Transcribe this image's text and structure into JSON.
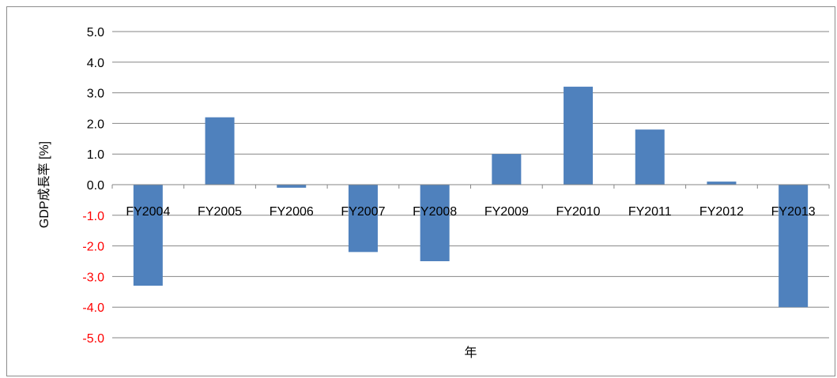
{
  "chart_data": {
    "type": "bar",
    "title": "",
    "xlabel": "年",
    "ylabel": "GDP成長率 [%]",
    "categories": [
      "FY2004",
      "FY2005",
      "FY2006",
      "FY2007",
      "FY2008",
      "FY2009",
      "FY2010",
      "FY2011",
      "FY2012",
      "FY2013"
    ],
    "series": [
      {
        "values": [
          -3.3,
          2.2,
          -0.1,
          -2.2,
          -2.5,
          1.0,
          3.2,
          1.8,
          0.1,
          -4.0
        ]
      }
    ],
    "ylim": [
      -5.0,
      5.0
    ],
    "yticks": [
      "5.0",
      "4.0",
      "3.0",
      "2.0",
      "1.0",
      "0.0",
      "-1.0",
      "-2.0",
      "-3.0",
      "-4.0",
      "-5.0"
    ],
    "grid": true,
    "legend": "none",
    "colors": {
      "bar": "#4F81BD",
      "negative_tick_label": "#FF0000",
      "positive_tick_label": "#000000",
      "gridline": "#868686"
    }
  }
}
